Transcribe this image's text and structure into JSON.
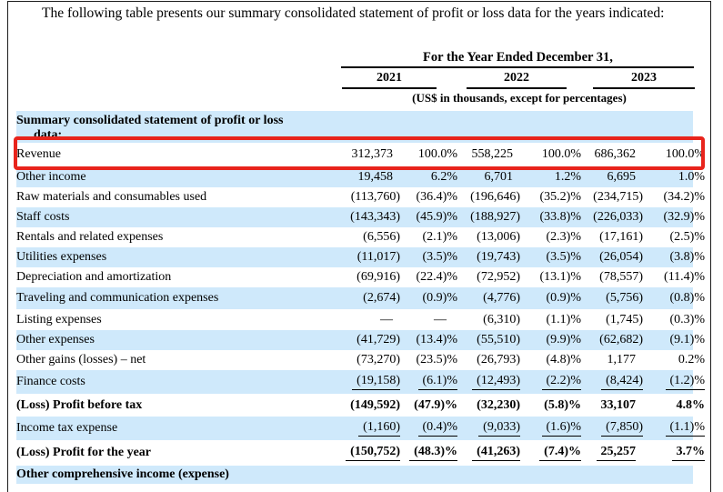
{
  "intro": "The following table presents our summary consolidated statement of profit or loss data for the years indicated:",
  "table": {
    "period_header": "For the Year Ended December 31,",
    "years": [
      "2021",
      "2022",
      "2023"
    ],
    "unit_note": "(US$ in thousands, except for percentages)",
    "stripe_color": "#cfe9fb",
    "highlight_color": "#e8241c",
    "rows": [
      {
        "label": "Summary consolidated statement of profit or loss",
        "label2": "data:",
        "values": [
          "",
          "",
          "",
          "",
          "",
          ""
        ],
        "emphasis": true
      },
      {
        "label": "Revenue",
        "values": [
          "312,373",
          "100.0%",
          "558,225",
          "100.0%",
          "686,362",
          "100.0%"
        ],
        "highlighted": true
      },
      {
        "label": "Other income",
        "values": [
          "19,458",
          "6.2%",
          "6,701",
          "1.2%",
          "6,695",
          "1.0%"
        ]
      },
      {
        "label": "Raw materials and consumables used",
        "values": [
          "(113,760)",
          "(36.4)%",
          "(196,646)",
          "(35.2)%",
          "(234,715)",
          "(34.2)%"
        ]
      },
      {
        "label": "Staff costs",
        "values": [
          "(143,343)",
          "(45.9)%",
          "(188,927)",
          "(33.8)%",
          "(226,033)",
          "(32.9)%"
        ]
      },
      {
        "label": "Rentals and related expenses",
        "values": [
          "(6,556)",
          "(2.1)%",
          "(13,006)",
          "(2.3)%",
          "(17,161)",
          "(2.5)%"
        ]
      },
      {
        "label": "Utilities expenses",
        "values": [
          "(11,017)",
          "(3.5)%",
          "(19,743)",
          "(3.5)%",
          "(26,054)",
          "(3.8)%"
        ]
      },
      {
        "label": "Depreciation and amortization",
        "values": [
          "(69,916)",
          "(22.4)%",
          "(72,952)",
          "(13.1)%",
          "(78,557)",
          "(11.4)%"
        ]
      },
      {
        "label": "Traveling and communication expenses",
        "values": [
          "(2,674)",
          "(0.9)%",
          "(4,776)",
          "(0.9)%",
          "(5,756)",
          "(0.8)%"
        ]
      },
      {
        "label": "Listing expenses",
        "values": [
          "—",
          "—",
          "(6,310)",
          "(1.1)%",
          "(1,745)",
          "(0.3)%"
        ]
      },
      {
        "label": "Other expenses",
        "values": [
          "(41,729)",
          "(13.4)%",
          "(55,510)",
          "(9.9)%",
          "(62,682)",
          "(9.1)%"
        ]
      },
      {
        "label": "Other gains (losses) – net",
        "values": [
          "(73,270)",
          "(23.5)%",
          "(26,793)",
          "(4.8)%",
          "1,177",
          "0.2%"
        ]
      },
      {
        "label": "Finance costs",
        "values": [
          "(19,158)",
          "(6.1)%",
          "(12,493)",
          "(2.2)%",
          "(8,424)",
          "(1.2)%"
        ],
        "rule_below": true
      },
      {
        "label": "(Loss) Profit before tax",
        "values": [
          "(149,592)",
          "(47.9)%",
          "(32,230)",
          "(5.8)%",
          "33,107",
          "4.8%"
        ],
        "emphasis": true
      },
      {
        "label": "Income tax expense",
        "values": [
          "(1,160)",
          "(0.4)%",
          "(9,033)",
          "(1.6)%",
          "(7,850)",
          "(1.1)%"
        ],
        "rule_below": true
      },
      {
        "label": "(Loss) Profit for the year",
        "values": [
          "(150,752)",
          "(48.3)%",
          "(41,263)",
          "(7.4)%",
          "25,257",
          "3.7%"
        ],
        "emphasis": true,
        "rule_below": true
      },
      {
        "label": "Other comprehensive income (expense)",
        "values": [
          "",
          "",
          "",
          "",
          "",
          ""
        ],
        "emphasis": true
      }
    ]
  }
}
